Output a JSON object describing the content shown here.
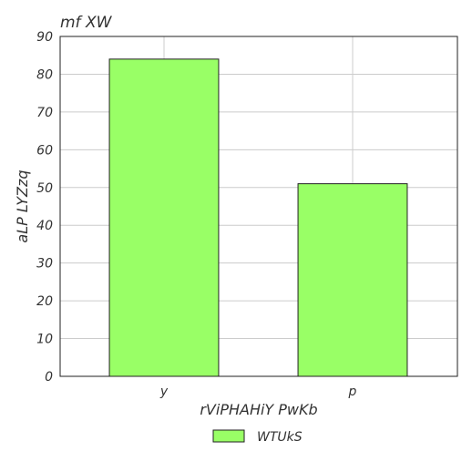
{
  "chart_data": {
    "type": "bar",
    "title": "mf XW",
    "xlabel": "rViPHAHiY PwKb",
    "ylabel": "aLP LYZzq",
    "categories": [
      "y",
      "p"
    ],
    "series": [
      {
        "name": "WTUkS",
        "values": [
          84,
          51
        ],
        "color": "#99ff66"
      }
    ],
    "ylim": [
      0,
      90
    ],
    "yticks": [
      0,
      10,
      20,
      30,
      40,
      50,
      60,
      70,
      80,
      90
    ],
    "grid": true,
    "legend_position": "bottom-center"
  }
}
